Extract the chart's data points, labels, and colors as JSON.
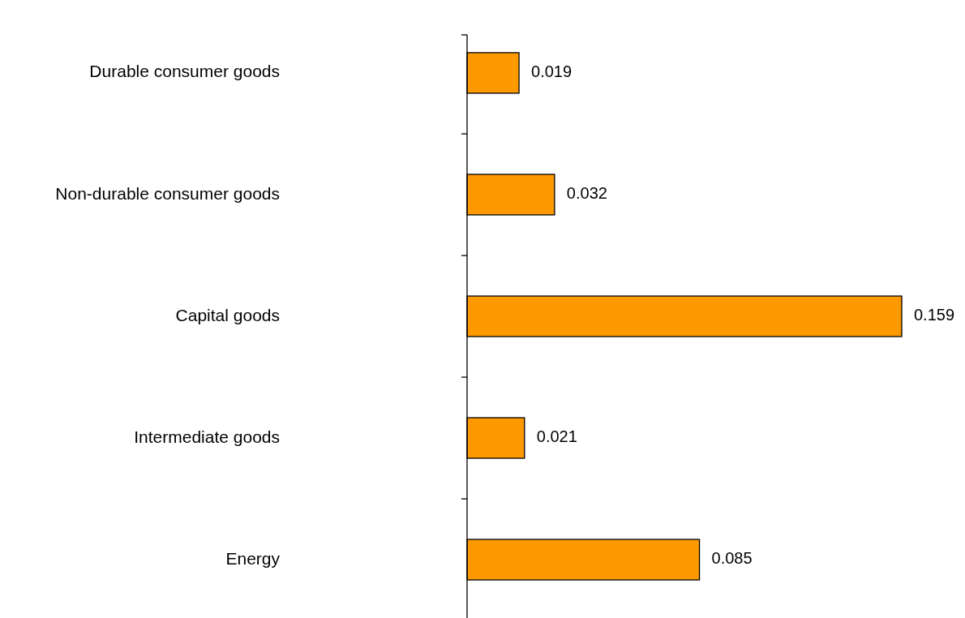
{
  "chart_data": {
    "type": "bar",
    "orientation": "horizontal",
    "categories": [
      "Durable consumer goods",
      "Non-durable consumer goods",
      "Capital goods",
      "Intermediate goods",
      "Energy"
    ],
    "values": [
      0.019,
      0.032,
      0.159,
      0.021,
      0.085
    ],
    "color": "#ff9900",
    "data_labels": true,
    "tick_labels": "y"
  }
}
